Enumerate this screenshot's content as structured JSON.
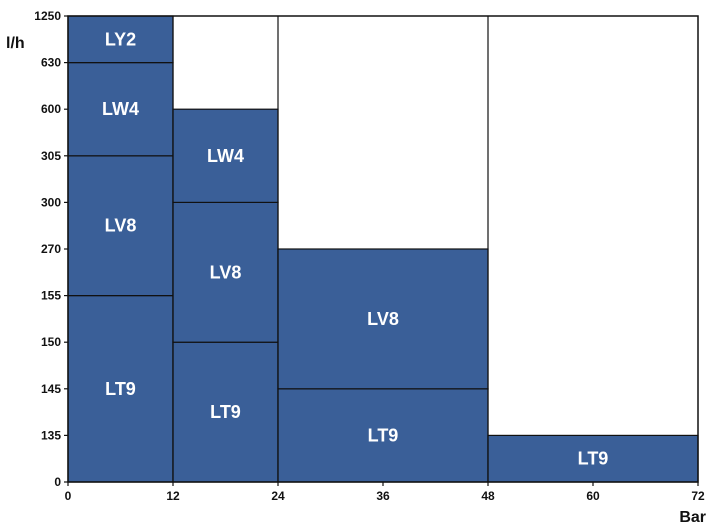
{
  "chart_data": {
    "type": "bar",
    "xlabel": "Bar",
    "ylabel": "l/h",
    "x_ticks": [
      "0",
      "12",
      "24",
      "36",
      "48",
      "60",
      "72"
    ],
    "x_range": [
      0,
      72
    ],
    "y_ticks": [
      "0",
      "135",
      "145",
      "150",
      "155",
      "270",
      "300",
      "305",
      "600",
      "630",
      "1250"
    ],
    "colors": {
      "fill": "#3a5f98",
      "line": "#111111",
      "background": "#ffffff"
    },
    "bars": [
      {
        "x_from": 0,
        "x_to": 12,
        "segments": [
          {
            "label": "LT9",
            "from": 0,
            "to": 155
          },
          {
            "label": "LV8",
            "from": 155,
            "to": 305
          },
          {
            "label": "LW4",
            "from": 305,
            "to": 630
          },
          {
            "label": "LY2",
            "from": 630,
            "to": 1250
          }
        ]
      },
      {
        "x_from": 12,
        "x_to": 24,
        "segments": [
          {
            "label": "LT9",
            "from": 0,
            "to": 150
          },
          {
            "label": "LV8",
            "from": 150,
            "to": 300
          },
          {
            "label": "LW4",
            "from": 300,
            "to": 600
          }
        ]
      },
      {
        "x_from": 24,
        "x_to": 48,
        "segments": [
          {
            "label": "LT9",
            "from": 0,
            "to": 145
          },
          {
            "label": "LV8",
            "from": 145,
            "to": 270
          }
        ]
      },
      {
        "x_from": 48,
        "x_to": 72,
        "segments": [
          {
            "label": "LT9",
            "from": 0,
            "to": 135
          }
        ]
      }
    ],
    "grid": false,
    "legend": "none"
  }
}
